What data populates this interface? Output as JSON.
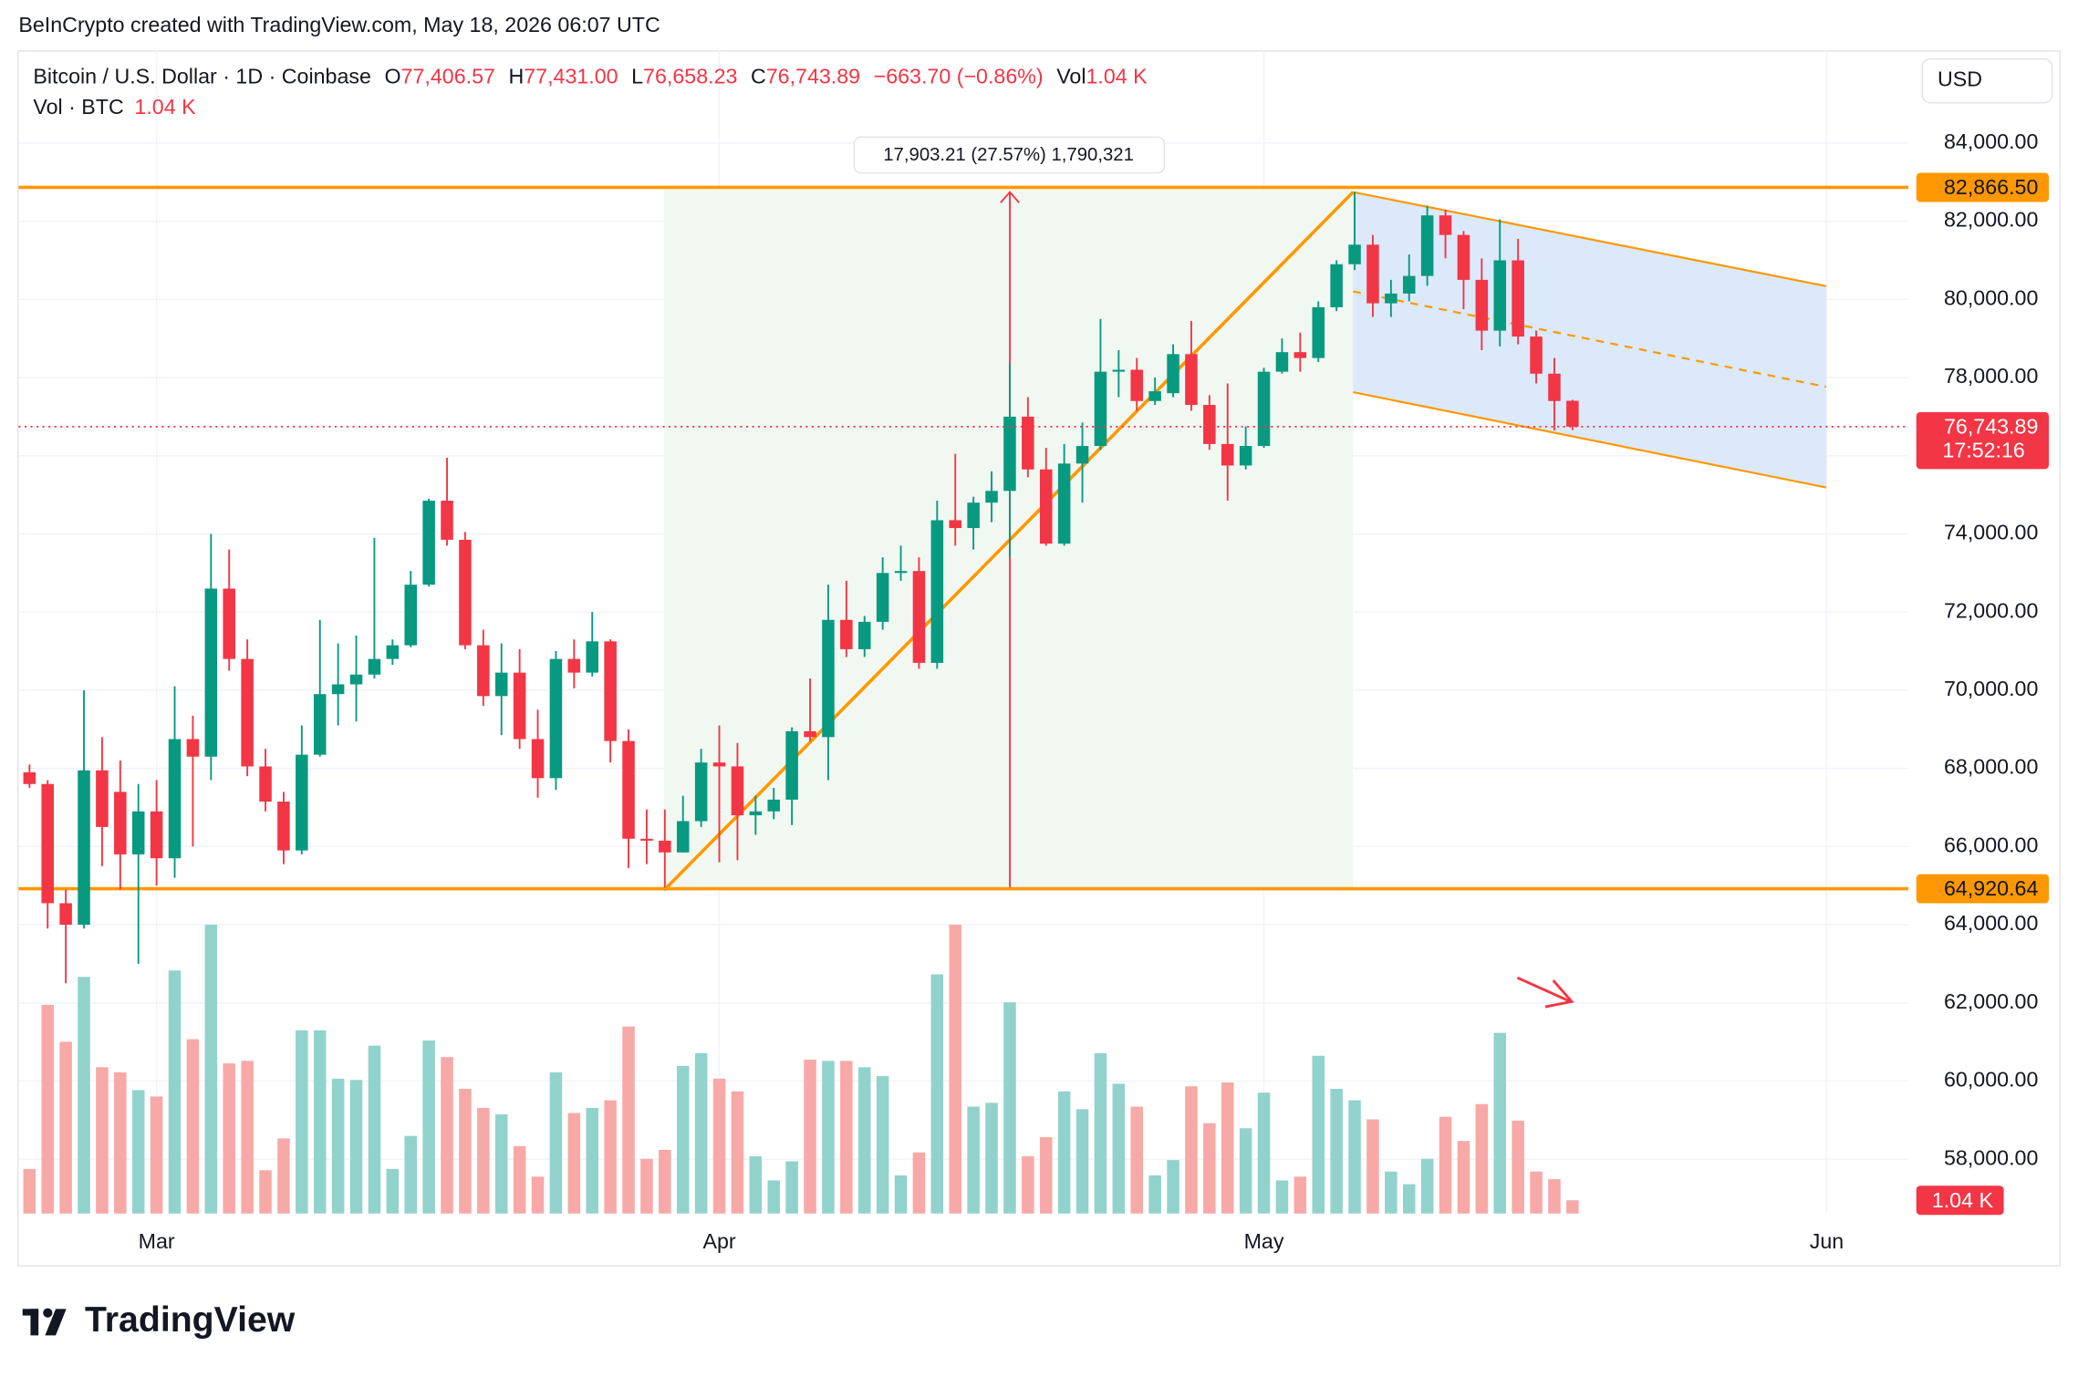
{
  "chart_data": {
    "type": "candlestick",
    "header": "BeInCrypto created with TradingView.com, May 18, 2026 06:07 UTC",
    "symbol": "Bitcoin / U.S. Dollar · 1D · Coinbase",
    "ohlc_legend": [
      {
        "key": "O",
        "value": "77,406.57"
      },
      {
        "key": "H",
        "value": "77,431.00"
      },
      {
        "key": "L",
        "value": "76,658.23"
      },
      {
        "key": "C",
        "value": "76,743.89"
      }
    ],
    "change": "−663.70 (−0.86%)",
    "vol_key": "Vol",
    "vol_value": "1.04 K",
    "volume_legend": "Vol · BTC",
    "volume_legend_value": "1.04 K",
    "currency": "USD",
    "measure_label": "17,903.21 (27.57%) 1,790,321",
    "logo_text": "TradingView",
    "up_color": "#089981",
    "down_color": "#f23645",
    "volume_up_color": "#92d2cc",
    "volume_down_color": "#f7a9a7",
    "open": [
      67900,
      67600,
      64550,
      64000,
      67950,
      67400,
      65800,
      66900,
      65700,
      68750,
      68300,
      72600,
      70800,
      68050,
      67150,
      65900,
      68350,
      69900,
      70150,
      70400,
      70800,
      71150,
      72700,
      74850,
      73850,
      71150,
      69850,
      70450,
      68750,
      67750,
      70800,
      70450,
      71250,
      68700,
      66200,
      66150,
      65850,
      66650,
      68150,
      68050,
      66800,
      66900,
      67200,
      68950,
      68800,
      71800,
      71050,
      71750,
      73000,
      73050,
      70700,
      74350,
      74150,
      74800,
      75100,
      77000,
      75650,
      73750,
      75800,
      76250,
      78150,
      78200,
      77400,
      77600,
      78600,
      77300,
      76300,
      75750,
      76250,
      78150,
      78650,
      78500,
      79800,
      80900,
      81400,
      79900,
      80150,
      80600,
      82150,
      81650,
      80500,
      79200,
      81000,
      79050,
      78100,
      77406.57
    ],
    "high": [
      68100,
      67700,
      64900,
      70000,
      68800,
      68200,
      67600,
      67700,
      70100,
      69350,
      74000,
      73600,
      71300,
      68500,
      67400,
      69100,
      71800,
      71200,
      71400,
      73900,
      71300,
      73050,
      74900,
      75950,
      74050,
      71550,
      71200,
      71050,
      69500,
      71000,
      71300,
      72000,
      71300,
      69000,
      66950,
      66950,
      67300,
      68500,
      69100,
      68650,
      67300,
      67500,
      69050,
      70300,
      72700,
      72800,
      71900,
      73400,
      73700,
      73400,
      74850,
      76050,
      74950,
      75600,
      78350,
      77500,
      76200,
      76300,
      76850,
      79500,
      78700,
      78500,
      78000,
      78850,
      79450,
      77550,
      77850,
      76750,
      78250,
      79000,
      79150,
      79950,
      81000,
      82750,
      81650,
      80500,
      81150,
      82400,
      82300,
      81750,
      81050,
      82050,
      81550,
      79200,
      78500,
      77431
    ],
    "low": [
      67500,
      63900,
      62500,
      63900,
      65500,
      64900,
      63000,
      65000,
      65200,
      66000,
      67700,
      70500,
      67800,
      66900,
      65550,
      65800,
      68300,
      69100,
      69200,
      70300,
      70650,
      71100,
      72650,
      73700,
      71050,
      69600,
      68850,
      68500,
      67250,
      67450,
      70050,
      70350,
      68150,
      65450,
      65550,
      64950,
      65850,
      66500,
      65600,
      65650,
      66300,
      66700,
      66550,
      68700,
      67700,
      70850,
      70850,
      71550,
      72800,
      70550,
      70550,
      73700,
      73600,
      74300,
      73400,
      75450,
      73700,
      73700,
      74800,
      76150,
      77500,
      77150,
      77300,
      77500,
      77150,
      76150,
      74850,
      75650,
      76200,
      78100,
      78150,
      78400,
      79700,
      80750,
      79550,
      79550,
      79950,
      80350,
      81050,
      79750,
      78700,
      78800,
      78850,
      77850,
      76650,
      76658.23
    ],
    "close": [
      67600,
      64550,
      64000,
      67950,
      66500,
      65800,
      66900,
      65700,
      68750,
      68300,
      72600,
      70800,
      68050,
      67150,
      65900,
      68350,
      69900,
      70150,
      70400,
      70800,
      71150,
      72700,
      74850,
      73850,
      71150,
      69850,
      70450,
      68750,
      67750,
      70800,
      70450,
      71250,
      68700,
      66200,
      66150,
      65850,
      66650,
      68150,
      68050,
      66800,
      66900,
      67200,
      68950,
      68800,
      71800,
      71050,
      71750,
      73000,
      73050,
      70700,
      74350,
      74150,
      74800,
      75100,
      77000,
      75650,
      73750,
      75800,
      76250,
      78150,
      78200,
      77400,
      77650,
      78600,
      77300,
      76300,
      75750,
      76250,
      78150,
      78650,
      78500,
      79800,
      80900,
      81400,
      79900,
      80150,
      80600,
      82150,
      81650,
      80500,
      79200,
      81000,
      79050,
      78100,
      77400,
      76743.89
    ],
    "volume": [
      3.5,
      16.4,
      13.5,
      18.6,
      11.5,
      11.1,
      9.7,
      9.2,
      19.1,
      13.7,
      22.7,
      11.8,
      12.0,
      3.4,
      5.9,
      14.4,
      14.4,
      10.6,
      10.5,
      13.2,
      3.5,
      6.1,
      13.6,
      12.3,
      9.8,
      8.3,
      7.8,
      5.3,
      2.9,
      11.1,
      7.9,
      8.3,
      8.9,
      14.7,
      4.3,
      5.0,
      11.6,
      12.6,
      10.6,
      9.6,
      4.5,
      2.6,
      4.1,
      12.1,
      12.0,
      12.0,
      11.5,
      10.8,
      3.0,
      4.8,
      18.8,
      22.7,
      8.4,
      8.7,
      16.6,
      4.5,
      6.0,
      9.6,
      8.2,
      12.6,
      10.2,
      8.4,
      3.0,
      4.2,
      10.0,
      7.1,
      10.3,
      6.7,
      9.5,
      2.6,
      2.9,
      12.4,
      9.8,
      8.9,
      7.4,
      3.3,
      2.3,
      4.3,
      7.6,
      5.7,
      8.6,
      14.2,
      7.3,
      3.3,
      2.7,
      1.04
    ],
    "volume_axis_label": "1.04 K",
    "xlim": [
      -0.6,
      103.5
    ],
    "xticks": [
      {
        "value": 7,
        "label": "Mar"
      },
      {
        "value": 38,
        "label": "Apr"
      },
      {
        "value": 68,
        "label": "May"
      },
      {
        "value": 99,
        "label": "Jun"
      }
    ],
    "ylim": [
      56610,
      86373
    ],
    "yticks": [
      {
        "value": 84000,
        "label": "84,000.00"
      },
      {
        "value": 82000,
        "label": "82,000.00"
      },
      {
        "value": 80000,
        "label": "80,000.00"
      },
      {
        "value": 78000,
        "label": "78,000.00"
      },
      {
        "value": 76000,
        "label": "76,000.00"
      },
      {
        "value": 74000,
        "label": "74,000.00"
      },
      {
        "value": 72000,
        "label": "72,000.00"
      },
      {
        "value": 70000,
        "label": "70,000.00"
      },
      {
        "value": 68000,
        "label": "68,000.00"
      },
      {
        "value": 66000,
        "label": "66,000.00"
      },
      {
        "value": 64000,
        "label": "64,000.00"
      },
      {
        "value": 62000,
        "label": "62,000.00"
      },
      {
        "value": 60000,
        "label": "60,000.00"
      },
      {
        "value": 58000,
        "label": "58,000.00"
      }
    ],
    "grid": true,
    "levels": [
      {
        "value": 82866.5,
        "label": "82,866.50",
        "color": "#ff9800"
      },
      {
        "value": 64920.64,
        "label": "64,920.64",
        "color": "#ff9800"
      }
    ],
    "last_price": {
      "value": 76743.89,
      "label": "76,743.89",
      "countdown": "17:52:16",
      "color": "#f23645"
    }
  }
}
